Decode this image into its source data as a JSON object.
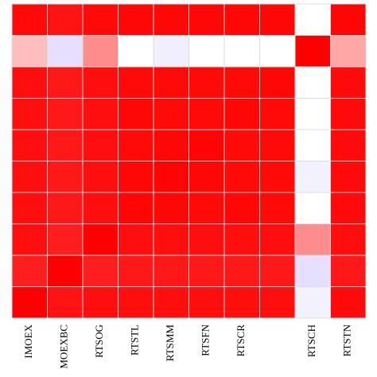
{
  "chart_data": {
    "type": "heatmap",
    "categories": [
      "IMOEX",
      "MOEXBC",
      "RTSOG",
      "RTSTL",
      "RTSMM",
      "RTSFN",
      "RTSCR",
      null,
      "RTSCH",
      "RTSTN"
    ],
    "z": [
      [
        0.9,
        0.8,
        0.9,
        0.92,
        0.92,
        0.92,
        0.92,
        0.92,
        0,
        0.95
      ],
      [
        0.02,
        -0.1,
        0.1,
        0,
        -0.03,
        0,
        0,
        0,
        1.0,
        0.05
      ],
      [
        0.85,
        0.75,
        0.85,
        0.9,
        0.9,
        0.9,
        0.9,
        0.92,
        0,
        0.88
      ],
      [
        0.85,
        0.75,
        0.85,
        0.92,
        0.9,
        0.9,
        0.92,
        0.9,
        0,
        0.88
      ],
      [
        0.85,
        0.75,
        0.85,
        0.9,
        0.92,
        0.97,
        0.9,
        0.9,
        0,
        0.88
      ],
      [
        0.85,
        0.75,
        0.85,
        0.92,
        0.97,
        0.92,
        0.9,
        0.9,
        -0.02,
        0.88
      ],
      [
        0.85,
        0.75,
        0.85,
        0.95,
        0.92,
        0.9,
        0.92,
        0.9,
        0,
        0.88
      ],
      [
        0.85,
        0.7,
        1.0,
        0.85,
        0.85,
        0.85,
        0.85,
        0.85,
        0.1,
        0.85
      ],
      [
        0.7,
        1.0,
        0.7,
        0.75,
        0.75,
        0.75,
        0.75,
        0.75,
        -0.1,
        0.75
      ],
      [
        1.0,
        0.8,
        0.85,
        0.85,
        0.85,
        0.85,
        0.85,
        0.85,
        -0.02,
        0.88
      ]
    ],
    "zlim": [
      -0.3,
      1
    ],
    "colors": {
      "low": "#d4c8ff",
      "mid": "#ffffff",
      "high": "#ff0000"
    }
  }
}
